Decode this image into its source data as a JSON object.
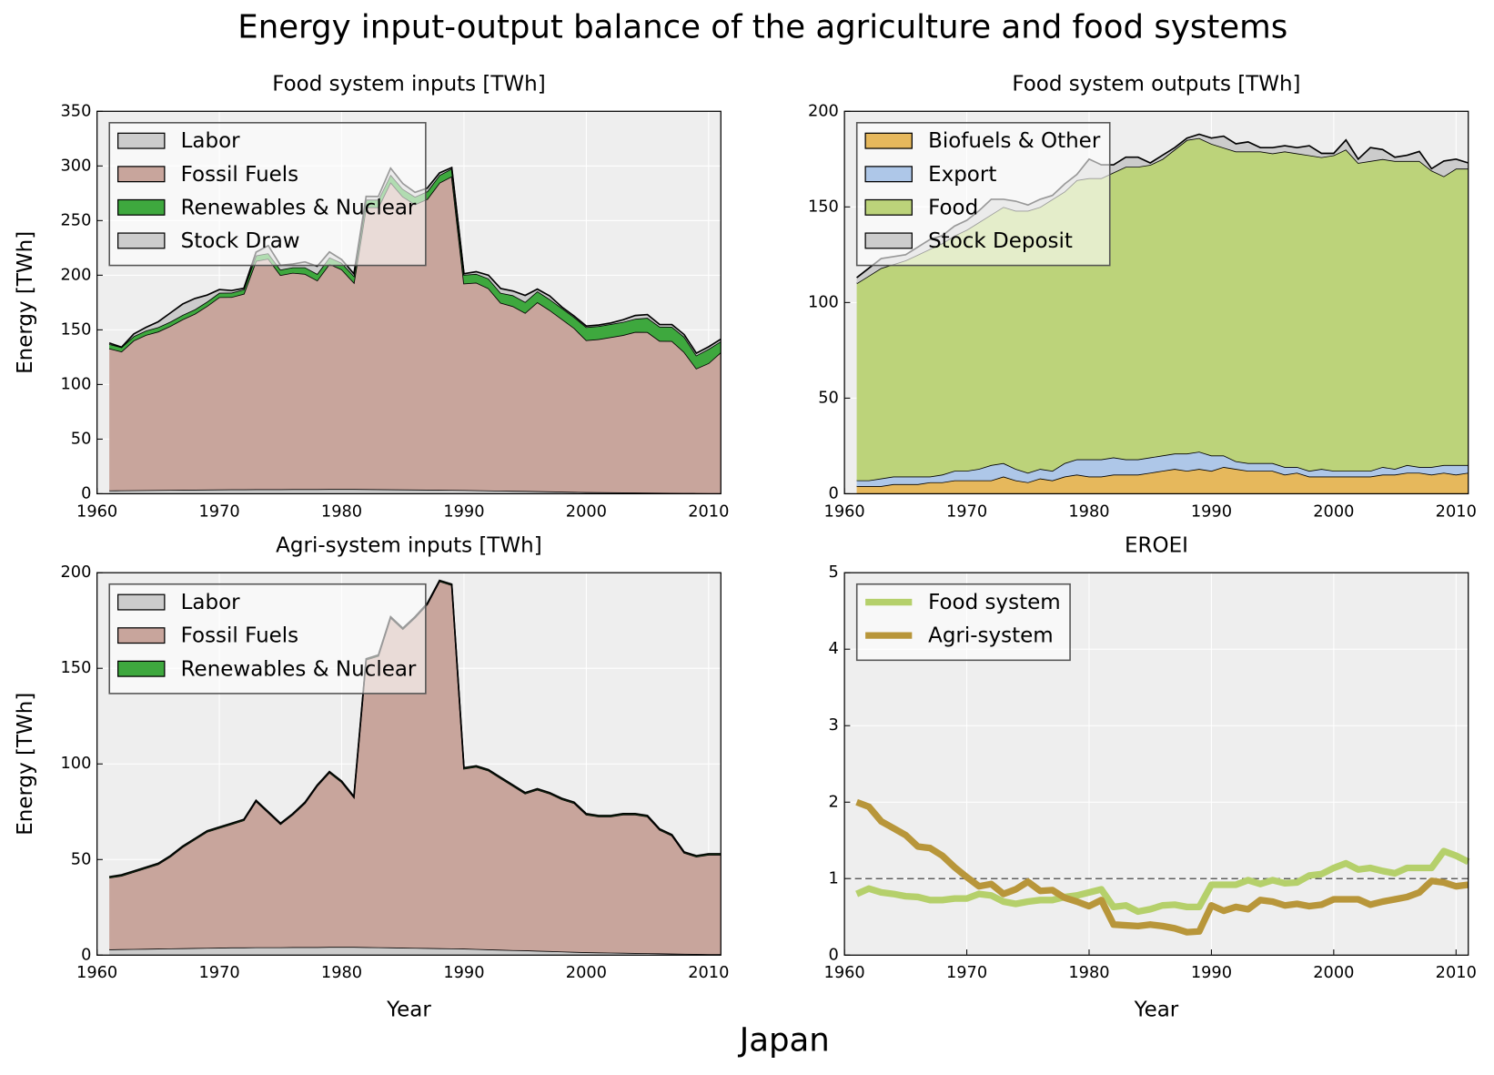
{
  "title": "Energy input-output balance of the agriculture and food systems",
  "caption": "Japan",
  "chart_data": [
    {
      "type": "area",
      "title": "Food system inputs [TWh]",
      "ylabel": "Energy [TWh]",
      "x": [
        1961,
        1962,
        1963,
        1964,
        1965,
        1966,
        1967,
        1968,
        1969,
        1970,
        1971,
        1972,
        1973,
        1974,
        1975,
        1976,
        1977,
        1978,
        1979,
        1980,
        1981,
        1982,
        1983,
        1984,
        1985,
        1986,
        1987,
        1988,
        1989,
        1990,
        1991,
        1992,
        1993,
        1994,
        1995,
        1996,
        1997,
        1998,
        1999,
        2000,
        2001,
        2002,
        2003,
        2004,
        2005,
        2006,
        2007,
        2008,
        2009,
        2010,
        2011
      ],
      "series": [
        {
          "name": "Labor",
          "color": "#cccccc",
          "values": [
            3.0,
            3.1,
            3.2,
            3.3,
            3.4,
            3.5,
            3.6,
            3.7,
            3.8,
            3.9,
            4.0,
            4.0,
            4.1,
            4.1,
            4.1,
            4.2,
            4.2,
            4.2,
            4.3,
            4.3,
            4.3,
            4.2,
            4.1,
            4.0,
            3.9,
            3.8,
            3.7,
            3.6,
            3.5,
            3.4,
            3.2,
            3.0,
            2.8,
            2.6,
            2.5,
            2.3,
            2.1,
            1.9,
            1.7,
            1.5,
            1.4,
            1.3,
            1.2,
            1.1,
            1.0,
            0.9,
            0.8,
            0.7,
            0.6,
            0.5,
            0.5
          ]
        },
        {
          "name": "Fossil Fuels",
          "color": "#c8a59c",
          "values": [
            130,
            127,
            137,
            142,
            145,
            150,
            156,
            161,
            168,
            176,
            176,
            179,
            209,
            211,
            196,
            198,
            197,
            191,
            206,
            201,
            189,
            258,
            258,
            281,
            268,
            261,
            266,
            281,
            287,
            189,
            190,
            185,
            172,
            169,
            163,
            173,
            166,
            158,
            150,
            139,
            140,
            142,
            144,
            147,
            147,
            139,
            139,
            129,
            114,
            119,
            129
          ]
        },
        {
          "name": "Renewables & Nuclear",
          "color": "#3ea83e",
          "values": [
            4,
            4,
            4,
            4,
            4,
            4,
            4,
            4,
            4,
            4,
            4,
            4,
            5,
            5,
            5,
            5,
            6,
            6,
            6,
            6,
            6,
            7,
            7,
            7,
            7,
            7,
            7,
            7,
            7,
            8,
            8,
            9,
            9,
            10,
            10,
            10,
            10,
            10,
            10,
            12,
            12,
            12,
            12,
            12,
            13,
            13,
            13,
            14,
            12,
            13,
            10
          ]
        },
        {
          "name": "Stock Draw",
          "color": "#cccccc",
          "values": [
            1,
            0,
            2,
            3,
            5,
            8,
            10,
            10,
            6,
            3,
            2,
            1,
            3,
            7,
            4,
            3,
            5,
            7,
            5,
            3,
            2,
            3,
            3,
            6,
            5,
            4,
            3,
            2,
            1,
            1,
            2,
            3,
            4,
            4,
            6,
            2,
            3,
            1,
            1,
            1,
            1,
            1,
            2,
            3,
            3,
            2,
            2,
            2,
            2,
            2,
            2
          ]
        }
      ],
      "xlim": [
        1960,
        2011
      ],
      "xticks": [
        1960,
        1970,
        1980,
        1990,
        2000,
        2010
      ],
      "ylim": [
        0,
        350
      ],
      "yticks": [
        0,
        50,
        100,
        150,
        200,
        250,
        300,
        350
      ],
      "grid": true,
      "legend": "upper left"
    },
    {
      "type": "area",
      "title": "Food system outputs [TWh]",
      "x": [
        1961,
        1962,
        1963,
        1964,
        1965,
        1966,
        1967,
        1968,
        1969,
        1970,
        1971,
        1972,
        1973,
        1974,
        1975,
        1976,
        1977,
        1978,
        1979,
        1980,
        1981,
        1982,
        1983,
        1984,
        1985,
        1986,
        1987,
        1988,
        1989,
        1990,
        1991,
        1992,
        1993,
        1994,
        1995,
        1996,
        1997,
        1998,
        1999,
        2000,
        2001,
        2002,
        2003,
        2004,
        2005,
        2006,
        2007,
        2008,
        2009,
        2010,
        2011
      ],
      "series": [
        {
          "name": "Biofuels & Other",
          "color": "#e6b85c",
          "values": [
            4,
            4,
            4,
            5,
            5,
            5,
            6,
            6,
            7,
            7,
            7,
            7,
            9,
            7,
            6,
            8,
            7,
            9,
            10,
            9,
            9,
            10,
            10,
            10,
            11,
            12,
            13,
            12,
            13,
            12,
            14,
            13,
            12,
            12,
            12,
            10,
            11,
            9,
            9,
            9,
            9,
            9,
            9,
            10,
            10,
            11,
            11,
            10,
            11,
            10,
            11
          ]
        },
        {
          "name": "Export",
          "color": "#aec7e8",
          "values": [
            3,
            3,
            4,
            4,
            4,
            4,
            3,
            4,
            5,
            5,
            6,
            8,
            7,
            6,
            5,
            5,
            5,
            7,
            8,
            9,
            9,
            9,
            8,
            8,
            8,
            8,
            8,
            9,
            9,
            8,
            6,
            4,
            4,
            4,
            4,
            4,
            3,
            3,
            4,
            3,
            3,
            3,
            3,
            4,
            3,
            4,
            3,
            4,
            4,
            5,
            4
          ]
        },
        {
          "name": "Food",
          "color": "#bcd37a",
          "values": [
            103,
            107,
            110,
            111,
            113,
            116,
            119,
            121,
            123,
            126,
            129,
            131,
            134,
            135,
            137,
            137,
            142,
            142,
            146,
            147,
            147,
            149,
            153,
            153,
            153,
            155,
            159,
            164,
            164,
            163,
            161,
            162,
            163,
            163,
            162,
            165,
            164,
            165,
            163,
            165,
            168,
            161,
            162,
            161,
            161,
            159,
            160,
            155,
            151,
            155,
            155
          ]
        },
        {
          "name": "Stock Deposit",
          "color": "#cccccc",
          "values": [
            3,
            4,
            5,
            4,
            3,
            4,
            5,
            4,
            5,
            5,
            6,
            8,
            4,
            5,
            3,
            4,
            2,
            4,
            3,
            10,
            7,
            4,
            5,
            5,
            1,
            2,
            1,
            1,
            2,
            3,
            6,
            4,
            5,
            2,
            3,
            3,
            3,
            5,
            2,
            1,
            5,
            2,
            7,
            5,
            2,
            3,
            5,
            1,
            8,
            5,
            3
          ]
        }
      ],
      "xlim": [
        1960,
        2011
      ],
      "xticks": [
        1960,
        1970,
        1980,
        1990,
        2000,
        2010
      ],
      "ylim": [
        0,
        200
      ],
      "yticks": [
        0,
        50,
        100,
        150,
        200
      ],
      "grid": true,
      "legend": "upper left"
    },
    {
      "type": "area",
      "title": "Agri-system inputs [TWh]",
      "ylabel": "Energy [TWh]",
      "xlabel": "Year",
      "x": [
        1961,
        1962,
        1963,
        1964,
        1965,
        1966,
        1967,
        1968,
        1969,
        1970,
        1971,
        1972,
        1973,
        1974,
        1975,
        1976,
        1977,
        1978,
        1979,
        1980,
        1981,
        1982,
        1983,
        1984,
        1985,
        1986,
        1987,
        1988,
        1989,
        1990,
        1991,
        1992,
        1993,
        1994,
        1995,
        1996,
        1997,
        1998,
        1999,
        2000,
        2001,
        2002,
        2003,
        2004,
        2005,
        2006,
        2007,
        2008,
        2009,
        2010,
        2011
      ],
      "series": [
        {
          "name": "Labor",
          "color": "#cccccc",
          "values": [
            3.0,
            3.1,
            3.2,
            3.3,
            3.4,
            3.5,
            3.6,
            3.7,
            3.8,
            3.9,
            4.0,
            4.0,
            4.1,
            4.1,
            4.1,
            4.2,
            4.2,
            4.2,
            4.3,
            4.3,
            4.3,
            4.2,
            4.1,
            4.0,
            3.9,
            3.8,
            3.7,
            3.6,
            3.5,
            3.4,
            3.2,
            3.0,
            2.8,
            2.6,
            2.5,
            2.3,
            2.1,
            1.9,
            1.7,
            1.5,
            1.4,
            1.3,
            1.2,
            1.1,
            1.0,
            0.9,
            0.8,
            0.7,
            0.6,
            0.5,
            0.5
          ]
        },
        {
          "name": "Fossil Fuels",
          "color": "#c8a59c",
          "values": [
            37.5,
            38.4,
            40.3,
            42.2,
            44.1,
            48,
            52.9,
            56.8,
            60.7,
            62.6,
            64.5,
            66.5,
            76.4,
            70.4,
            64.4,
            69.3,
            75.3,
            84.3,
            91.2,
            86.2,
            78.2,
            150.3,
            152.4,
            172.5,
            166.6,
            172.7,
            179.8,
            191.9,
            190,
            94.1,
            95.3,
            93.5,
            89.7,
            85.9,
            82,
            84.2,
            82.4,
            79.6,
            77.8,
            72,
            71.1,
            71.2,
            72.3,
            72.4,
            71.5,
            64.6,
            61.7,
            52.8,
            50.9,
            52,
            52
          ]
        },
        {
          "name": "Renewables & Nuclear",
          "color": "#3ea83e",
          "values": [
            0.5,
            0.5,
            0.5,
            0.5,
            0.5,
            0.5,
            0.5,
            0.5,
            0.5,
            0.5,
            0.5,
            0.5,
            0.5,
            0.5,
            0.5,
            0.5,
            0.5,
            0.5,
            0.5,
            0.5,
            0.5,
            0.5,
            0.5,
            0.5,
            0.5,
            0.5,
            0.5,
            0.5,
            0.5,
            0.5,
            0.5,
            0.5,
            0.5,
            0.5,
            0.5,
            0.5,
            0.5,
            0.5,
            0.5,
            0.5,
            0.5,
            0.5,
            0.5,
            0.5,
            0.5,
            0.5,
            0.5,
            0.5,
            0.5,
            0.5,
            0.5
          ]
        }
      ],
      "xlim": [
        1960,
        2011
      ],
      "xticks": [
        1960,
        1970,
        1980,
        1990,
        2000,
        2010
      ],
      "ylim": [
        0,
        200
      ],
      "yticks": [
        0,
        50,
        100,
        150,
        200
      ],
      "grid": true,
      "legend": "upper left"
    },
    {
      "type": "line",
      "title": "EROEI",
      "xlabel": "Year",
      "x": [
        1961,
        1962,
        1963,
        1964,
        1965,
        1966,
        1967,
        1968,
        1969,
        1970,
        1971,
        1972,
        1973,
        1974,
        1975,
        1976,
        1977,
        1978,
        1979,
        1980,
        1981,
        1982,
        1983,
        1984,
        1985,
        1986,
        1987,
        1988,
        1989,
        1990,
        1991,
        1992,
        1993,
        1994,
        1995,
        1996,
        1997,
        1998,
        1999,
        2000,
        2001,
        2002,
        2003,
        2004,
        2005,
        2006,
        2007,
        2008,
        2009,
        2010,
        2011
      ],
      "series": [
        {
          "name": "Food system",
          "color": "#b5d06b",
          "values": [
            0.8,
            0.87,
            0.82,
            0.8,
            0.77,
            0.76,
            0.72,
            0.72,
            0.74,
            0.74,
            0.8,
            0.78,
            0.7,
            0.67,
            0.7,
            0.72,
            0.72,
            0.76,
            0.78,
            0.82,
            0.86,
            0.63,
            0.65,
            0.57,
            0.6,
            0.65,
            0.66,
            0.63,
            0.63,
            0.92,
            0.92,
            0.92,
            0.98,
            0.93,
            0.98,
            0.94,
            0.95,
            1.04,
            1.06,
            1.14,
            1.2,
            1.12,
            1.14,
            1.1,
            1.07,
            1.14,
            1.14,
            1.14,
            1.36,
            1.3,
            1.22
          ]
        },
        {
          "name": "Agri-system",
          "color": "#b8963a",
          "values": [
            2.0,
            1.94,
            1.75,
            1.66,
            1.57,
            1.42,
            1.4,
            1.3,
            1.15,
            1.02,
            0.9,
            0.93,
            0.8,
            0.86,
            0.96,
            0.84,
            0.85,
            0.75,
            0.7,
            0.64,
            0.72,
            0.4,
            0.39,
            0.38,
            0.4,
            0.38,
            0.35,
            0.3,
            0.31,
            0.65,
            0.58,
            0.63,
            0.6,
            0.72,
            0.7,
            0.65,
            0.67,
            0.64,
            0.66,
            0.73,
            0.73,
            0.73,
            0.66,
            0.7,
            0.73,
            0.76,
            0.82,
            0.97,
            0.95,
            0.9,
            0.92
          ]
        }
      ],
      "hline": 1,
      "xlim": [
        1960,
        2011
      ],
      "xticks": [
        1960,
        1970,
        1980,
        1990,
        2000,
        2010
      ],
      "ylim": [
        0,
        5
      ],
      "yticks": [
        0,
        1,
        2,
        3,
        4,
        5
      ],
      "grid": true,
      "legend": "upper left"
    }
  ]
}
